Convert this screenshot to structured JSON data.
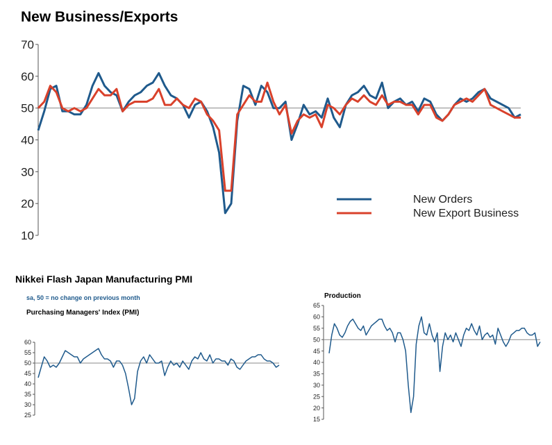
{
  "colors": {
    "new_orders": "#1f5a8c",
    "new_export": "#d9412b",
    "pmi": "#1f5a8c",
    "baseline": "#888888"
  },
  "chart_data": [
    {
      "type": "line",
      "title": "New Business/Exports",
      "ylim": [
        10,
        70
      ],
      "yticks": [
        "10",
        "20",
        "30",
        "40",
        "50",
        "60",
        "70"
      ],
      "reference_line": 50,
      "legend_placement": "center-right",
      "x": [
        0,
        3,
        6,
        9,
        12,
        15,
        18,
        21,
        24,
        27,
        30,
        33,
        36,
        39,
        42,
        45,
        48,
        51,
        54,
        57,
        60,
        63,
        66,
        69,
        72,
        75,
        78,
        81,
        84,
        87,
        90,
        93,
        96,
        99,
        102,
        105,
        108,
        111,
        114,
        117,
        120,
        123,
        126,
        129,
        132,
        135,
        138,
        141,
        144,
        147,
        150,
        153,
        156,
        159,
        162,
        165,
        168,
        171,
        174,
        177,
        180,
        183,
        186,
        189,
        192,
        195,
        198,
        201,
        204,
        207,
        210,
        213,
        216,
        219,
        222,
        225,
        228,
        231,
        234,
        237,
        240
      ],
      "series": [
        {
          "name": "New Orders",
          "values": [
            43,
            49,
            56,
            57,
            49,
            49,
            48,
            48,
            51,
            57,
            61,
            57,
            55,
            54,
            49,
            52,
            54,
            55,
            57,
            58,
            61,
            57,
            54,
            53,
            51,
            47,
            51,
            52,
            49,
            44,
            36,
            17,
            20,
            46,
            57,
            56,
            51,
            57,
            55,
            50,
            50,
            52,
            40,
            45,
            51,
            48,
            49,
            47,
            53,
            47,
            44,
            51,
            54,
            55,
            57,
            54,
            53,
            58,
            50,
            52,
            53,
            51,
            52,
            49,
            53,
            52,
            48,
            46,
            48,
            51,
            53,
            52,
            53,
            55,
            56,
            53,
            52,
            51,
            50,
            47,
            48
          ]
        },
        {
          "name": "New Export Business",
          "values": [
            50,
            52,
            57,
            55,
            50,
            49,
            50,
            49,
            50,
            53,
            56,
            54,
            54,
            56,
            49,
            51,
            52,
            52,
            52,
            53,
            56,
            51,
            51,
            53,
            51,
            50,
            53,
            52,
            48,
            46,
            43,
            24,
            24,
            48,
            51,
            54,
            52,
            52,
            58,
            52,
            48,
            51,
            42,
            46,
            48,
            47,
            48,
            44,
            51,
            50,
            48,
            51,
            53,
            52,
            54,
            52,
            51,
            54,
            51,
            52,
            52,
            51,
            51,
            48,
            51,
            51,
            47,
            46,
            48,
            51,
            52,
            53,
            52,
            54,
            56,
            51,
            50,
            49,
            48,
            47,
            47
          ]
        }
      ]
    },
    {
      "type": "line",
      "title": "Nikkei Flash Japan Manufacturing PMI",
      "note": "sa, 50 =  no change on previous month",
      "subtitle": "Purchasing Managers' Index (PMI)",
      "ylim": [
        25,
        60
      ],
      "yticks": [
        "25",
        "30",
        "35",
        "40",
        "45",
        "50",
        "55",
        "60"
      ],
      "reference_line": 50,
      "x": [
        0,
        3,
        6,
        9,
        12,
        15,
        18,
        21,
        24,
        27,
        30,
        33,
        36,
        39,
        42,
        45,
        48,
        51,
        54,
        57,
        60,
        63,
        66,
        69,
        72,
        75,
        78,
        81,
        84,
        87,
        90,
        93,
        96,
        99,
        102,
        105,
        108,
        111,
        114,
        117,
        120,
        123,
        126,
        129,
        132,
        135,
        138,
        141,
        144,
        147,
        150,
        153,
        156,
        159,
        162,
        165,
        168,
        171,
        174,
        177,
        180,
        183,
        186,
        189,
        192,
        195,
        198,
        201,
        204,
        207,
        210,
        213,
        216,
        219,
        222,
        225,
        228,
        231,
        234,
        237,
        240
      ],
      "series": [
        {
          "values": [
            43,
            48,
            53,
            51,
            48,
            49,
            48,
            50,
            53,
            56,
            55,
            54,
            53,
            53,
            50,
            52,
            53,
            54,
            55,
            56,
            57,
            54,
            52,
            52,
            51,
            48,
            51,
            51,
            49,
            45,
            38,
            30,
            33,
            46,
            51,
            53,
            50,
            54,
            52,
            50,
            50,
            51,
            44,
            48,
            51,
            49,
            50,
            48,
            51,
            49,
            47,
            51,
            53,
            52,
            55,
            52,
            51,
            54,
            50,
            52,
            52,
            51,
            51,
            49,
            52,
            51,
            48,
            47,
            49,
            51,
            52,
            53,
            53,
            54,
            54,
            52,
            51,
            51,
            50,
            48,
            49
          ]
        }
      ]
    },
    {
      "type": "line",
      "title": "Production",
      "ylim": [
        15,
        65
      ],
      "yticks": [
        "15",
        "20",
        "25",
        "30",
        "35",
        "40",
        "45",
        "50",
        "55",
        "60",
        "65"
      ],
      "reference_line": 50,
      "x": [
        0,
        3,
        6,
        9,
        12,
        15,
        18,
        21,
        24,
        27,
        30,
        33,
        36,
        39,
        42,
        45,
        48,
        51,
        54,
        57,
        60,
        63,
        66,
        69,
        72,
        75,
        78,
        81,
        84,
        87,
        90,
        93,
        96,
        99,
        102,
        105,
        108,
        111,
        114,
        117,
        120,
        123,
        126,
        129,
        132,
        135,
        138,
        141,
        144,
        147,
        150,
        153,
        156,
        159,
        162,
        165,
        168,
        171,
        174,
        177,
        180,
        183,
        186,
        189,
        192,
        195,
        198,
        201,
        204,
        207,
        210,
        213,
        216,
        219,
        222,
        225,
        228,
        231,
        234,
        237,
        240
      ],
      "series": [
        {
          "values": [
            44,
            52,
            57,
            55,
            52,
            51,
            53,
            56,
            58,
            59,
            57,
            55,
            54,
            56,
            52,
            54,
            56,
            57,
            58,
            59,
            59,
            56,
            54,
            55,
            53,
            49,
            53,
            53,
            50,
            45,
            30,
            18,
            25,
            48,
            56,
            60,
            53,
            52,
            57,
            52,
            49,
            53,
            36,
            47,
            53,
            50,
            52,
            49,
            53,
            50,
            47,
            52,
            55,
            54,
            57,
            54,
            52,
            56,
            50,
            52,
            53,
            51,
            52,
            48,
            55,
            52,
            49,
            47,
            49,
            52,
            53,
            54,
            54,
            55,
            55,
            53,
            52,
            52,
            53,
            47,
            49
          ]
        }
      ]
    }
  ]
}
